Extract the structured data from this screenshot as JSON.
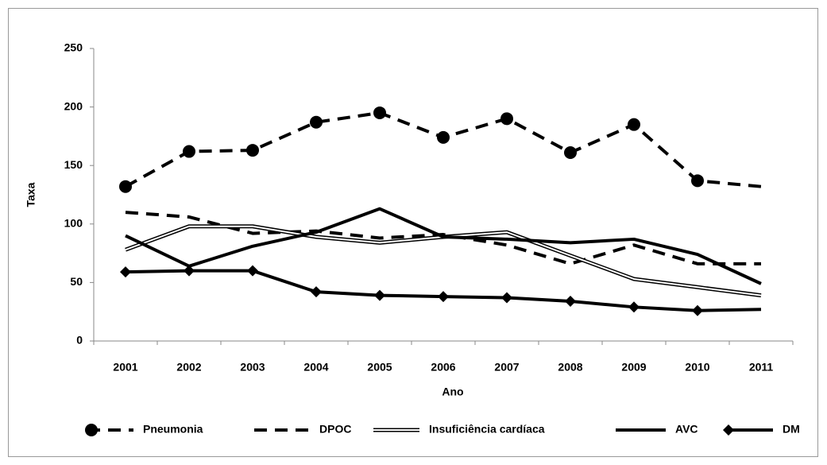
{
  "chart_data": {
    "type": "line",
    "xlabel": "Ano",
    "ylabel": "Taxa",
    "categories": [
      "2001",
      "2002",
      "2003",
      "2004",
      "2005",
      "2006",
      "2007",
      "2008",
      "2009",
      "2010",
      "2011"
    ],
    "ylim": [
      0,
      250
    ],
    "yticks": [
      0,
      50,
      100,
      150,
      200,
      250
    ],
    "series": [
      {
        "name": "Pneumonia",
        "color": "#000000",
        "dash": true,
        "marker": "circle",
        "values": [
          132,
          162,
          163,
          187,
          195,
          174,
          190,
          161,
          185,
          137,
          132
        ]
      },
      {
        "name": "DPOC",
        "color": "#000000",
        "dash": true,
        "values": [
          110,
          106,
          92,
          94,
          88,
          91,
          82,
          66,
          82,
          66,
          66
        ]
      },
      {
        "name": "Insuficiência cardíaca",
        "color": "#000000",
        "double": true,
        "values": [
          78,
          98,
          98,
          89,
          84,
          89,
          93,
          73,
          53,
          46,
          39
        ]
      },
      {
        "name": "AVC",
        "color": "#000000",
        "values": [
          90,
          64,
          81,
          93,
          113,
          89,
          87,
          84,
          87,
          74,
          49
        ]
      },
      {
        "name": "DM",
        "color": "#000000",
        "marker": "diamond",
        "values": [
          59,
          60,
          60,
          42,
          39,
          38,
          37,
          34,
          29,
          26,
          27
        ]
      }
    ]
  }
}
